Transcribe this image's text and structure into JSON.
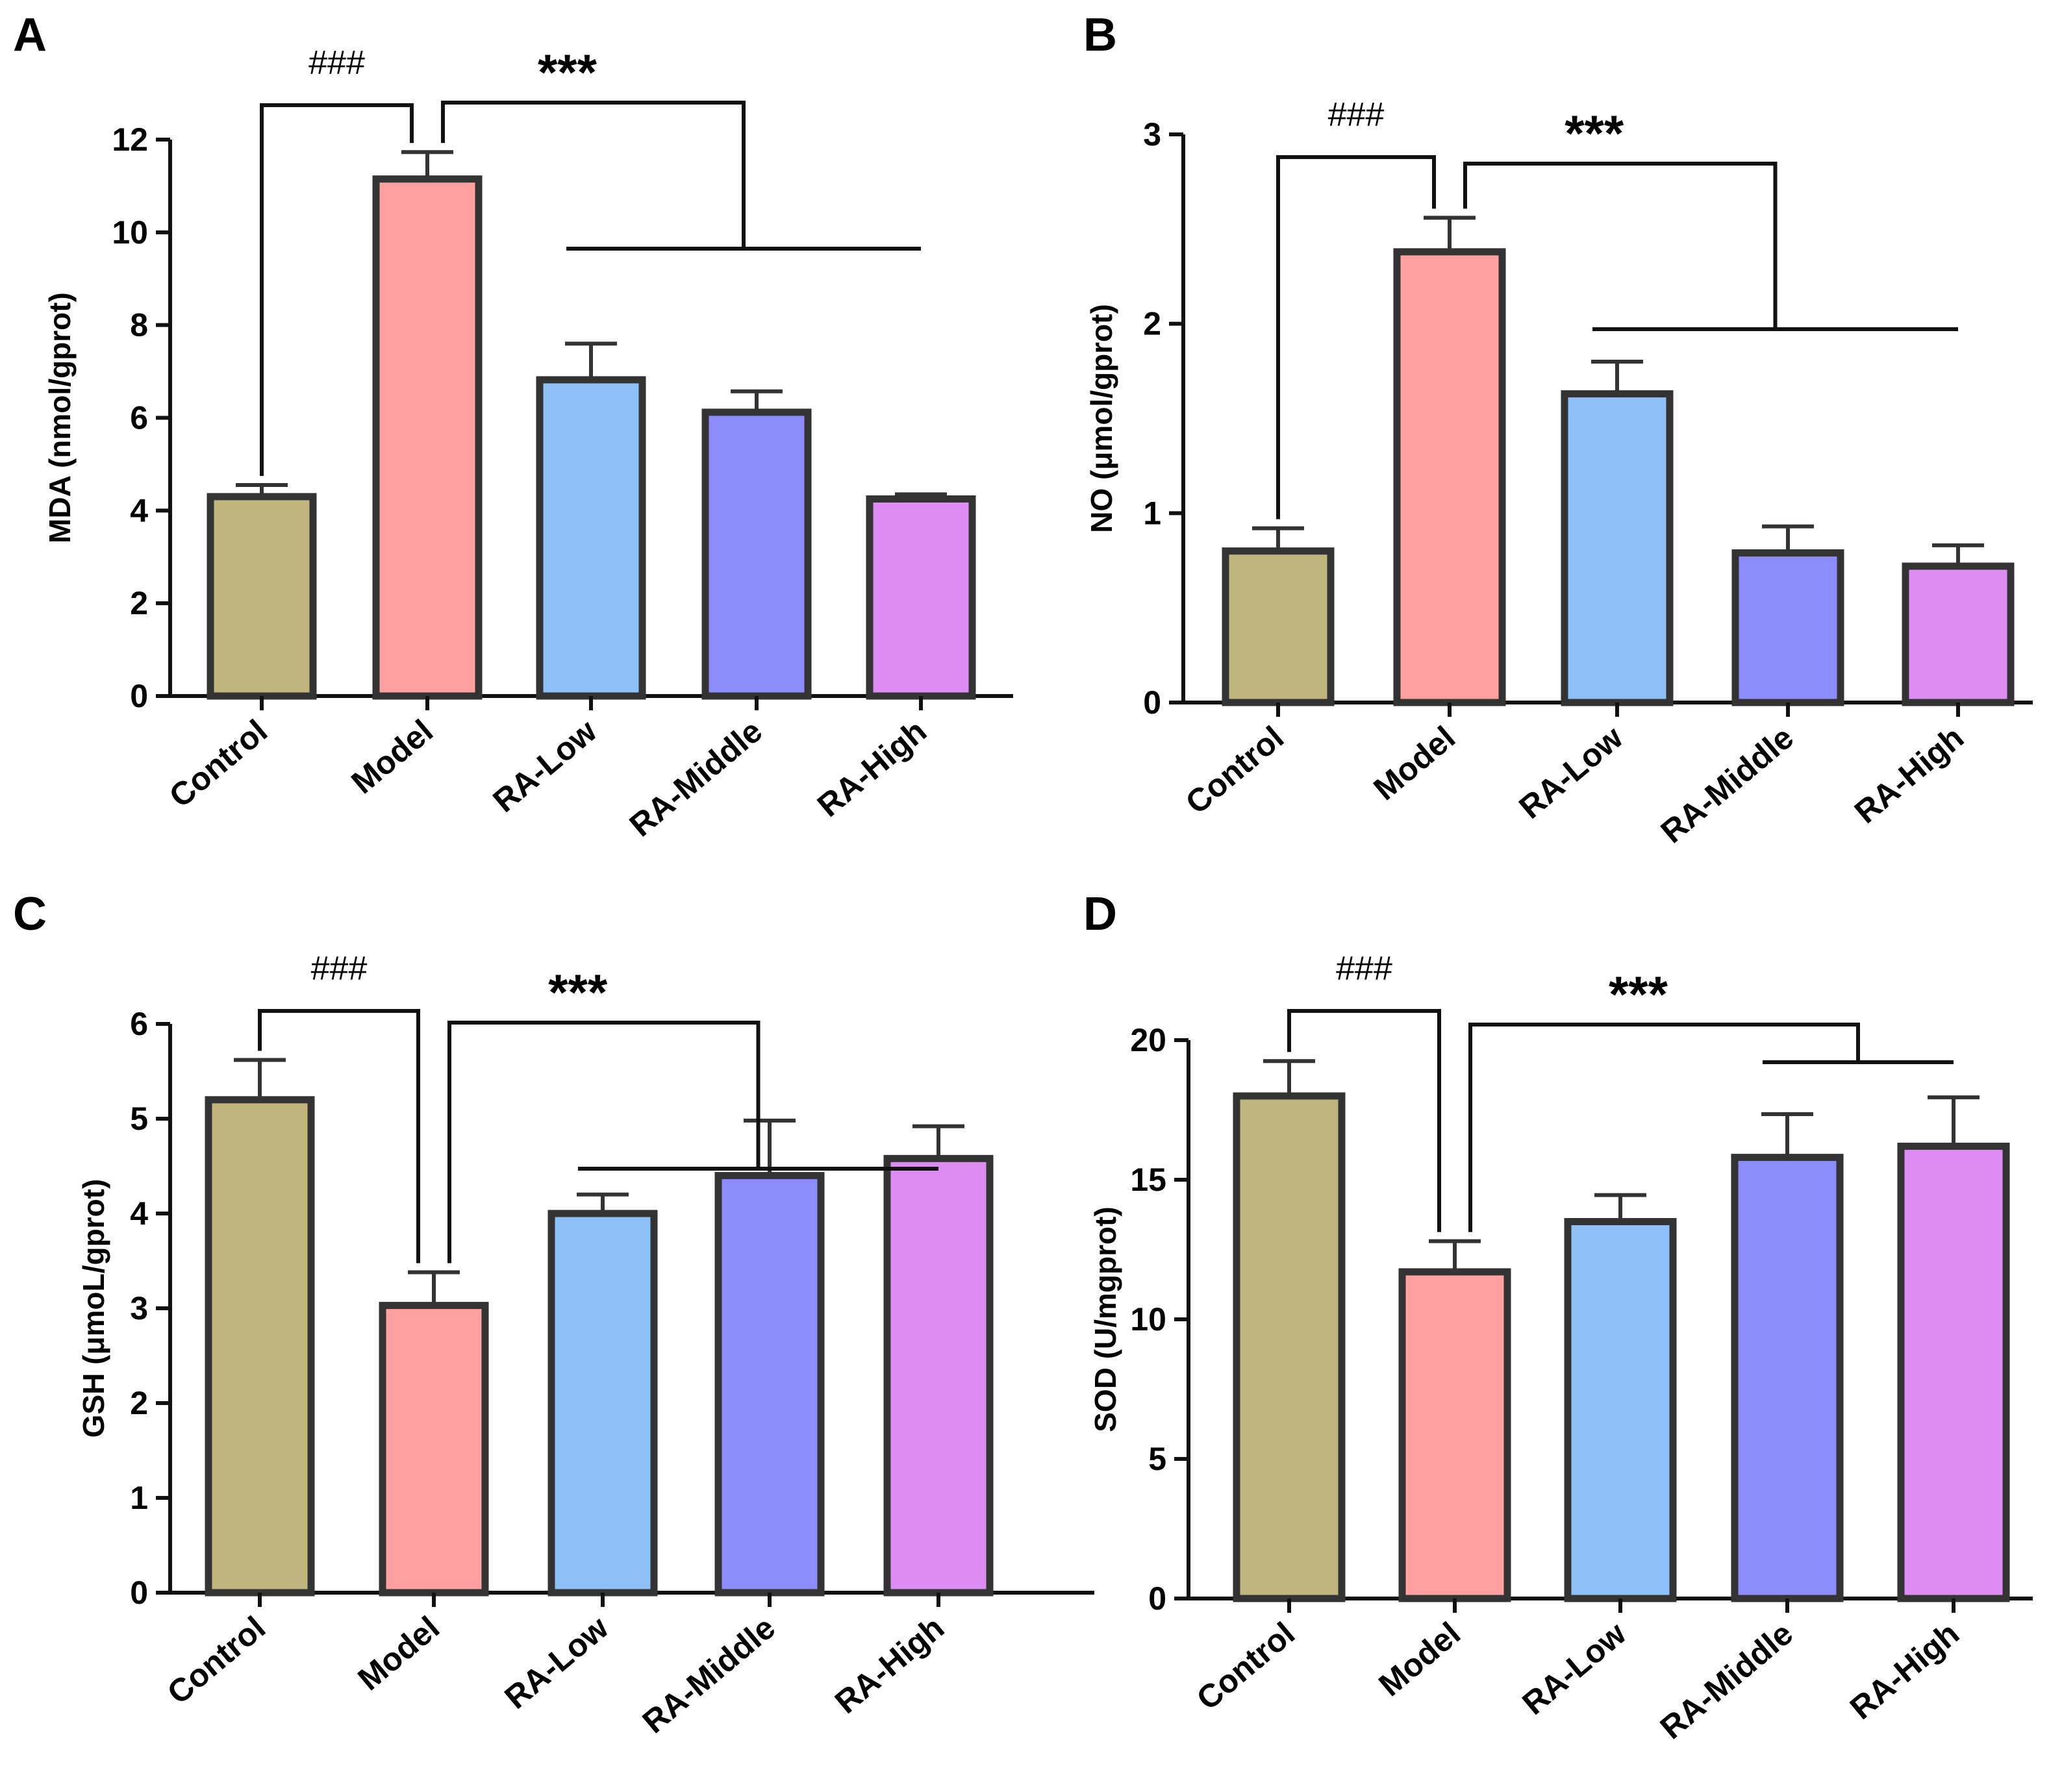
{
  "colors": {
    "Control": "#c0b57c",
    "Model": "#ffa0a0",
    "RA-Low": "#8ec0f8",
    "RA-Middle": "#8c8cfc",
    "RA-High": "#dd8cf4",
    "outline": "#333333"
  },
  "chart_data": [
    {
      "panel": "A",
      "type": "bar",
      "categories": [
        "Control",
        "Model",
        "RA-Low",
        "RA-Middle",
        "RA-High"
      ],
      "values": [
        4.3,
        11.15,
        6.82,
        6.12,
        4.25
      ],
      "errors": [
        0.25,
        0.58,
        0.78,
        0.45,
        0.1
      ],
      "ylabel": "MDA (nmol/gprot)",
      "ylim": [
        0,
        12
      ],
      "yticks": [
        0,
        2,
        4,
        6,
        8,
        10,
        12
      ],
      "sig_model_vs_control": "###",
      "sig_treatments_vs_model": "***"
    },
    {
      "panel": "B",
      "type": "bar",
      "categories": [
        "Control",
        "Model",
        "RA-Low",
        "RA-Middle",
        "RA-High"
      ],
      "values": [
        0.8,
        2.38,
        1.63,
        0.79,
        0.72
      ],
      "errors": [
        0.12,
        0.18,
        0.17,
        0.14,
        0.11
      ],
      "ylabel": "NO (μmol/gprot)",
      "ylim": [
        0,
        3
      ],
      "yticks": [
        0,
        1,
        2,
        3
      ],
      "sig_model_vs_control": "###",
      "sig_treatments_vs_model": "***"
    },
    {
      "panel": "C",
      "type": "bar",
      "categories": [
        "Control",
        "Model",
        "RA-Low",
        "RA-Middle",
        "RA-High"
      ],
      "values": [
        5.2,
        3.03,
        4.0,
        4.4,
        4.58
      ],
      "errors": [
        0.42,
        0.35,
        0.2,
        0.58,
        0.34
      ],
      "ylabel": "GSH (μmoL/gprot)",
      "ylim": [
        0,
        6
      ],
      "yticks": [
        0,
        1,
        2,
        3,
        4,
        5,
        6
      ],
      "sig_model_vs_control": "###",
      "sig_treatments_vs_model": "***"
    },
    {
      "panel": "D",
      "type": "bar",
      "categories": [
        "Control",
        "Model",
        "RA-Low",
        "RA-Middle",
        "RA-High"
      ],
      "values": [
        18.0,
        11.7,
        13.5,
        15.8,
        16.2
      ],
      "errors": [
        1.25,
        1.1,
        0.95,
        1.55,
        1.75
      ],
      "ylabel": "SOD (U/mgprot)",
      "ylim": [
        0,
        20
      ],
      "yticks": [
        0,
        5,
        10,
        15,
        20
      ],
      "sig_model_vs_control": "###",
      "sig_treatments_vs_model": "***"
    }
  ]
}
